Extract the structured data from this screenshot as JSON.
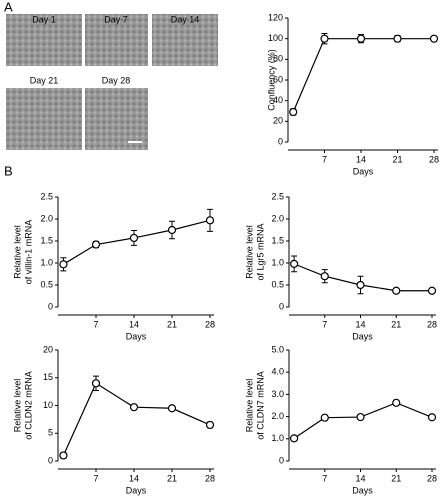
{
  "panel_labels": [
    "A",
    "B"
  ],
  "images": [
    "Day 1",
    "Day 7",
    "Day 14",
    "Day 21",
    "Day 28"
  ],
  "chart_data": [
    {
      "type": "line",
      "x": [
        1,
        7,
        14,
        21,
        28
      ],
      "values": [
        29,
        100,
        100,
        100,
        100
      ],
      "errors": [
        3,
        5,
        4,
        3,
        2
      ],
      "xlim": [
        0,
        28
      ],
      "xticks": [
        7,
        14,
        21,
        28
      ],
      "ylim": [
        0,
        120
      ],
      "yticks": [
        0,
        20,
        40,
        60,
        80,
        100,
        120
      ],
      "xlabel": "Days",
      "ylabel": [
        "Confluency (%)"
      ]
    },
    {
      "type": "line",
      "x": [
        1,
        7,
        14,
        21,
        28
      ],
      "values": [
        0.97,
        1.42,
        1.57,
        1.75,
        1.97
      ],
      "errors": [
        0.15,
        0.07,
        0.17,
        0.2,
        0.25
      ],
      "xlim": [
        0,
        28
      ],
      "xticks": [
        7,
        14,
        21,
        28
      ],
      "ylim": [
        0,
        2.5
      ],
      "yticks": [
        0,
        0.5,
        {
          "value": 1,
          "label": "1.0"
        },
        1.5,
        {
          "value": 2,
          "label": "2.0"
        },
        2.5
      ],
      "xlabel": "Days",
      "ylabel": [
        "Relative level",
        "of villin-1 mRNA"
      ]
    },
    {
      "type": "line",
      "x": [
        1,
        7,
        14,
        21,
        28
      ],
      "values": [
        0.98,
        0.7,
        0.5,
        0.37,
        0.37
      ],
      "errors": [
        0.18,
        0.15,
        0.2,
        0.05,
        0.05
      ],
      "xlim": [
        0,
        28
      ],
      "xticks": [
        7,
        14,
        21,
        28
      ],
      "ylim": [
        0,
        2.5
      ],
      "yticks": [
        0,
        0.5,
        {
          "value": 1,
          "label": "1.0"
        },
        1.5,
        {
          "value": 2,
          "label": "2.0"
        },
        2.5
      ],
      "xlabel": "Days",
      "ylabel": [
        "Relative level",
        "of Lgr5 mRNA"
      ]
    },
    {
      "type": "line",
      "x": [
        1,
        7,
        14,
        21,
        28
      ],
      "values": [
        1,
        14,
        9.7,
        9.5,
        6.5
      ],
      "errors": [
        0.5,
        1.3,
        0.3,
        0.4,
        0.5
      ],
      "xlim": [
        0,
        28
      ],
      "xticks": [
        7,
        14,
        21,
        28
      ],
      "ylim": [
        0,
        20
      ],
      "yticks": [
        0,
        5,
        10,
        15,
        20
      ],
      "xlabel": "Days",
      "ylabel": [
        "Relative level",
        "of CLDN2 mRNA"
      ]
    },
    {
      "type": "line",
      "x": [
        1,
        7,
        14,
        21,
        28
      ],
      "values": [
        1.02,
        1.95,
        1.98,
        2.62,
        1.97
      ],
      "errors": [
        0.1,
        0.08,
        0.08,
        0.1,
        0.1
      ],
      "xlim": [
        0,
        28
      ],
      "xticks": [
        7,
        14,
        21,
        28
      ],
      "ylim": [
        0,
        5
      ],
      "yticks": [
        0,
        {
          "value": 1,
          "label": "1.0"
        },
        {
          "value": 2,
          "label": "2.0"
        },
        {
          "value": 3,
          "label": "3.0"
        },
        {
          "value": 4,
          "label": "4.0"
        },
        {
          "value": 5,
          "label": "5.0"
        }
      ],
      "xlabel": "Days",
      "ylabel": [
        "Relative level",
        "of CLDN7 mRNA"
      ]
    }
  ]
}
